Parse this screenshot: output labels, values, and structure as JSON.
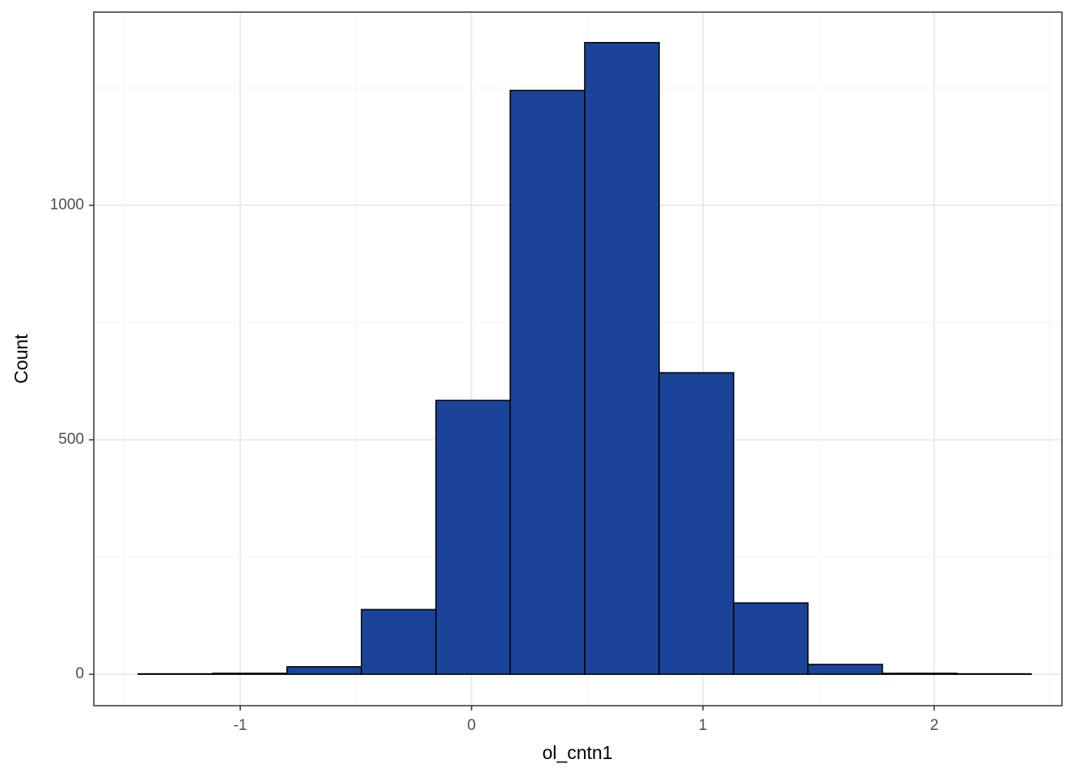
{
  "chart_data": {
    "type": "histogram",
    "x_label": "ol_cntn1",
    "y_label": "Count",
    "bins": [
      -1.441,
      -1.119,
      -0.798,
      -0.476,
      -0.154,
      0.167,
      0.489,
      0.811,
      1.133,
      1.454,
      1.776,
      2.098,
      2.419
    ],
    "counts": [
      1,
      2,
      16,
      138,
      584,
      1245,
      1347,
      643,
      152,
      21,
      2,
      1
    ],
    "color": "#1a4499",
    "xlim": [
      -1.633,
      2.552
    ],
    "ylim": [
      -67,
      1412
    ],
    "xticks": [
      -1,
      0,
      1,
      2
    ],
    "yticks": [
      0,
      500,
      1000
    ],
    "x_minor_grid": [
      -1.5,
      -0.5,
      0.5,
      1.5,
      2.5
    ],
    "y_minor_grid": [
      250,
      750,
      1250
    ],
    "grid": true
  }
}
